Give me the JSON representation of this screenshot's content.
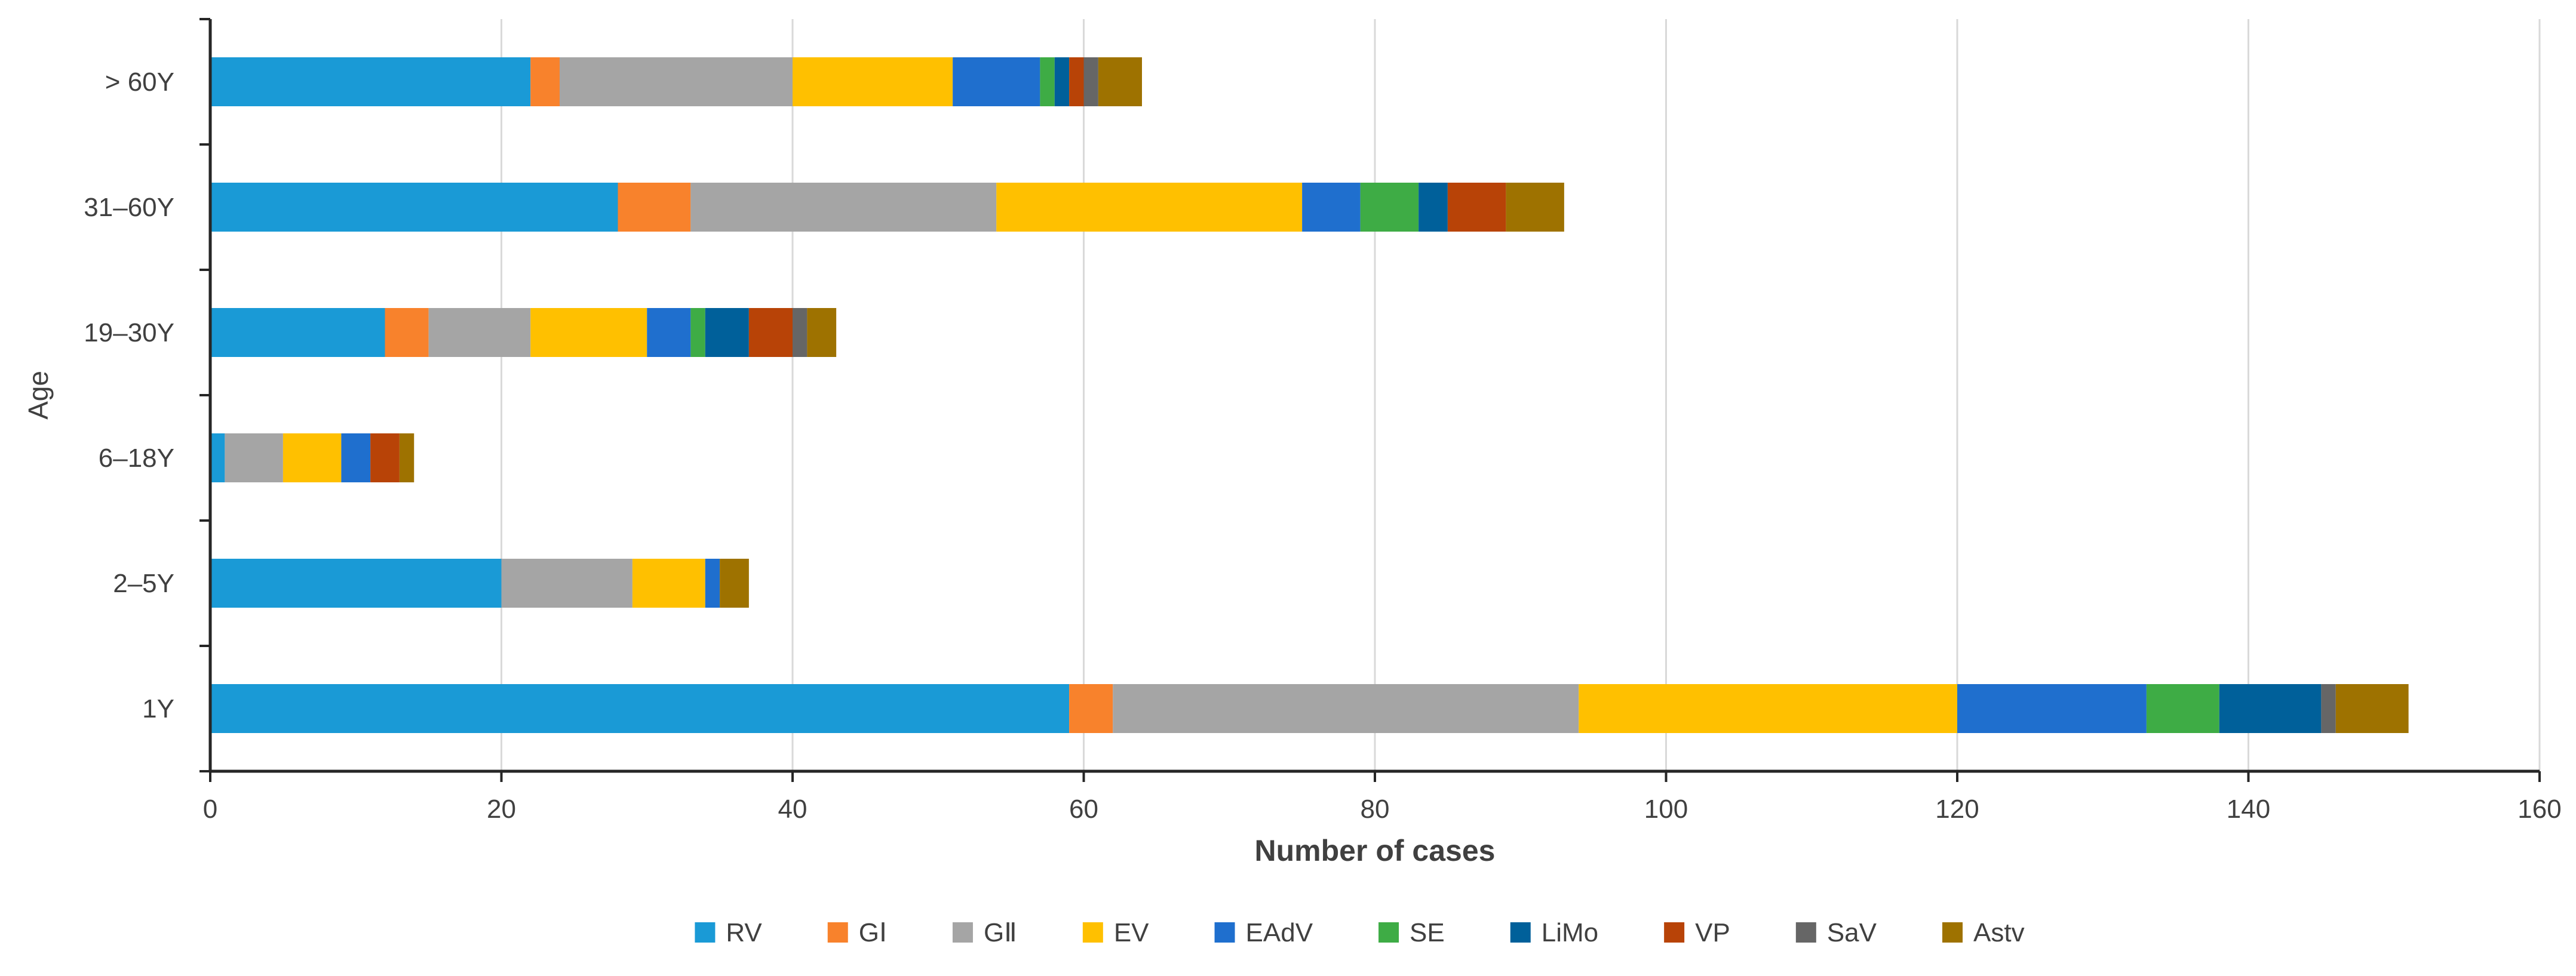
{
  "chart_data": {
    "type": "bar",
    "orientation": "horizontal",
    "stacked": true,
    "title": "",
    "xlabel": "Number of cases",
    "ylabel": "Age",
    "xlim": [
      0,
      160
    ],
    "x_ticks": [
      "0",
      "20",
      "40",
      "60",
      "80",
      "100",
      "120",
      "140",
      "160"
    ],
    "grid": "vertical",
    "legend_position": "bottom",
    "categories": [
      "1Y",
      "2–5Y",
      "6–18Y",
      "19–30Y",
      "31–60Y",
      "> 60Y"
    ],
    "series": [
      {
        "name": "RV",
        "color": "#1a9ad6",
        "values": [
          59,
          20,
          1,
          12,
          28,
          22
        ]
      },
      {
        "name": "GⅠ",
        "color": "#f8822c",
        "values": [
          3,
          0,
          0,
          3,
          5,
          2
        ]
      },
      {
        "name": "GⅡ",
        "color": "#a5a5a5",
        "values": [
          32,
          9,
          4,
          7,
          21,
          16
        ]
      },
      {
        "name": "EV",
        "color": "#ffc000",
        "values": [
          26,
          5,
          4,
          8,
          21,
          11
        ]
      },
      {
        "name": "EAdV",
        "color": "#1f6fce",
        "values": [
          13,
          1,
          2,
          3,
          4,
          6
        ]
      },
      {
        "name": "SE",
        "color": "#3eac45",
        "values": [
          5,
          0,
          0,
          1,
          4,
          1
        ]
      },
      {
        "name": "LiMo",
        "color": "#00609a",
        "values": [
          7,
          0,
          0,
          3,
          2,
          1
        ]
      },
      {
        "name": "VP",
        "color": "#b84307",
        "values": [
          0,
          0,
          2,
          3,
          4,
          1
        ]
      },
      {
        "name": "SaV",
        "color": "#666666",
        "values": [
          1,
          0,
          0,
          1,
          0,
          1
        ]
      },
      {
        "name": "Astv",
        "color": "#9e7200",
        "values": [
          5,
          2,
          1,
          2,
          4,
          3
        ]
      }
    ]
  }
}
